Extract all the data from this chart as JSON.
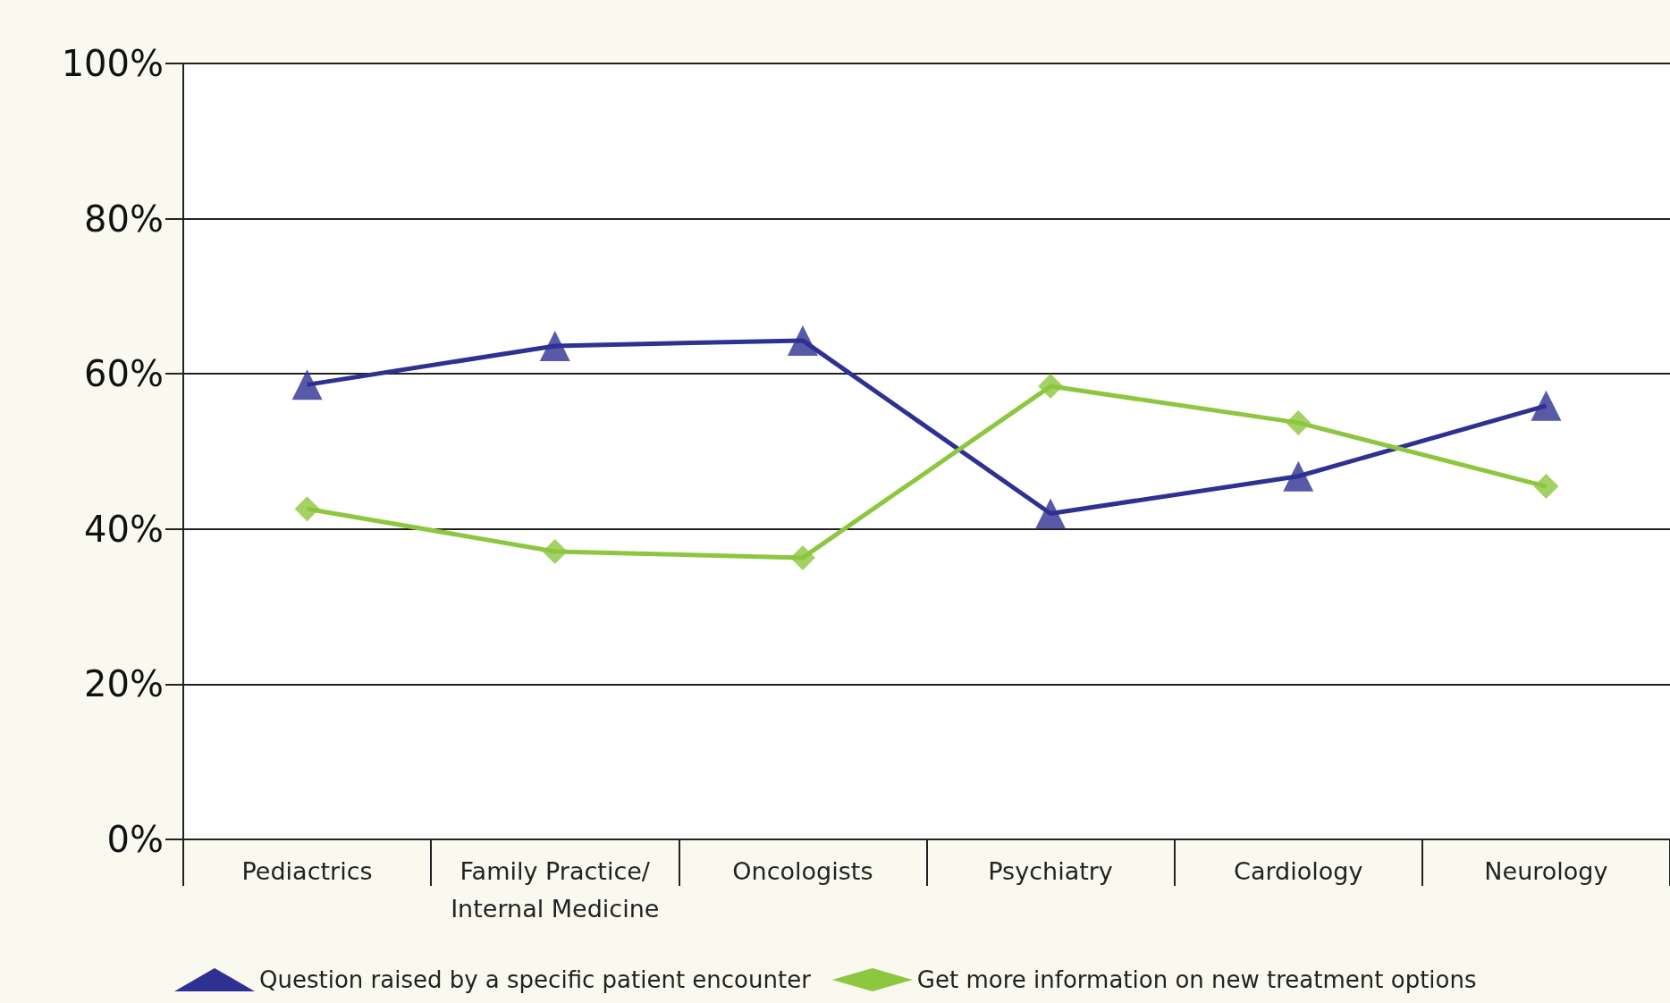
{
  "chart_data": {
    "type": "line",
    "categories": [
      "Pediactrics",
      "Family Practice/\nInternal Medicine",
      "Oncologists",
      "Psychiatry",
      "Cardiology",
      "Neurology"
    ],
    "series": [
      {
        "name": "Question raised by a specific patient encounter",
        "color": "#2e3192",
        "marker": "triangle",
        "values": [
          58.6,
          63.6,
          64.3,
          42.0,
          46.8,
          55.9
        ]
      },
      {
        "name": "Get more information on new treatment options",
        "color": "#8dc63f",
        "marker": "diamond",
        "values": [
          42.6,
          37.1,
          36.3,
          58.4,
          53.7,
          45.5
        ]
      }
    ],
    "ylim": [
      0,
      100
    ],
    "yticks": [
      {
        "value": 0,
        "label": "0%"
      },
      {
        "value": 20,
        "label": "20%"
      },
      {
        "value": 40,
        "label": "40%"
      },
      {
        "value": 60,
        "label": "60%"
      },
      {
        "value": 80,
        "label": "80%"
      },
      {
        "value": 100,
        "label": "100%"
      }
    ],
    "grid": "y",
    "legend": "bottom",
    "line_style": "solid"
  }
}
